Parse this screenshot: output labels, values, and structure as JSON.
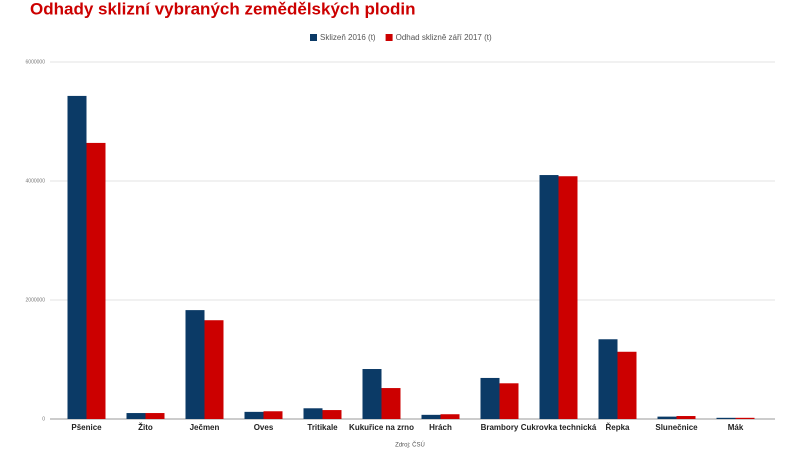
{
  "chart_data": {
    "type": "bar",
    "title": "Odhady sklizní vybraných zemědělských plodin",
    "source": "Zdroj: ČSÚ",
    "categories": [
      "Pšenice",
      "Žito",
      "Ječmen",
      "Oves",
      "Tritikale",
      "Kukuřice na zrno",
      "Hrách",
      "Brambory",
      "Cukrovka technická",
      "Řepka",
      "Slunečnice",
      "Mák"
    ],
    "series": [
      {
        "name": "Sklizeň 2016 (t)",
        "color": "#0b3a66",
        "values": [
          5430000,
          100000,
          1830000,
          120000,
          180000,
          840000,
          70000,
          690000,
          4100000,
          1340000,
          40000,
          20000
        ]
      },
      {
        "name": "Odhad sklizně září 2017 (t)",
        "color": "#cc0000",
        "values": [
          4640000,
          100000,
          1660000,
          130000,
          150000,
          520000,
          80000,
          600000,
          4080000,
          1130000,
          50000,
          20000
        ]
      }
    ],
    "ylim": [
      0,
      6000000
    ],
    "yticks": [
      0,
      2000000,
      4000000,
      6000000
    ],
    "grid": true,
    "legend": "top"
  }
}
